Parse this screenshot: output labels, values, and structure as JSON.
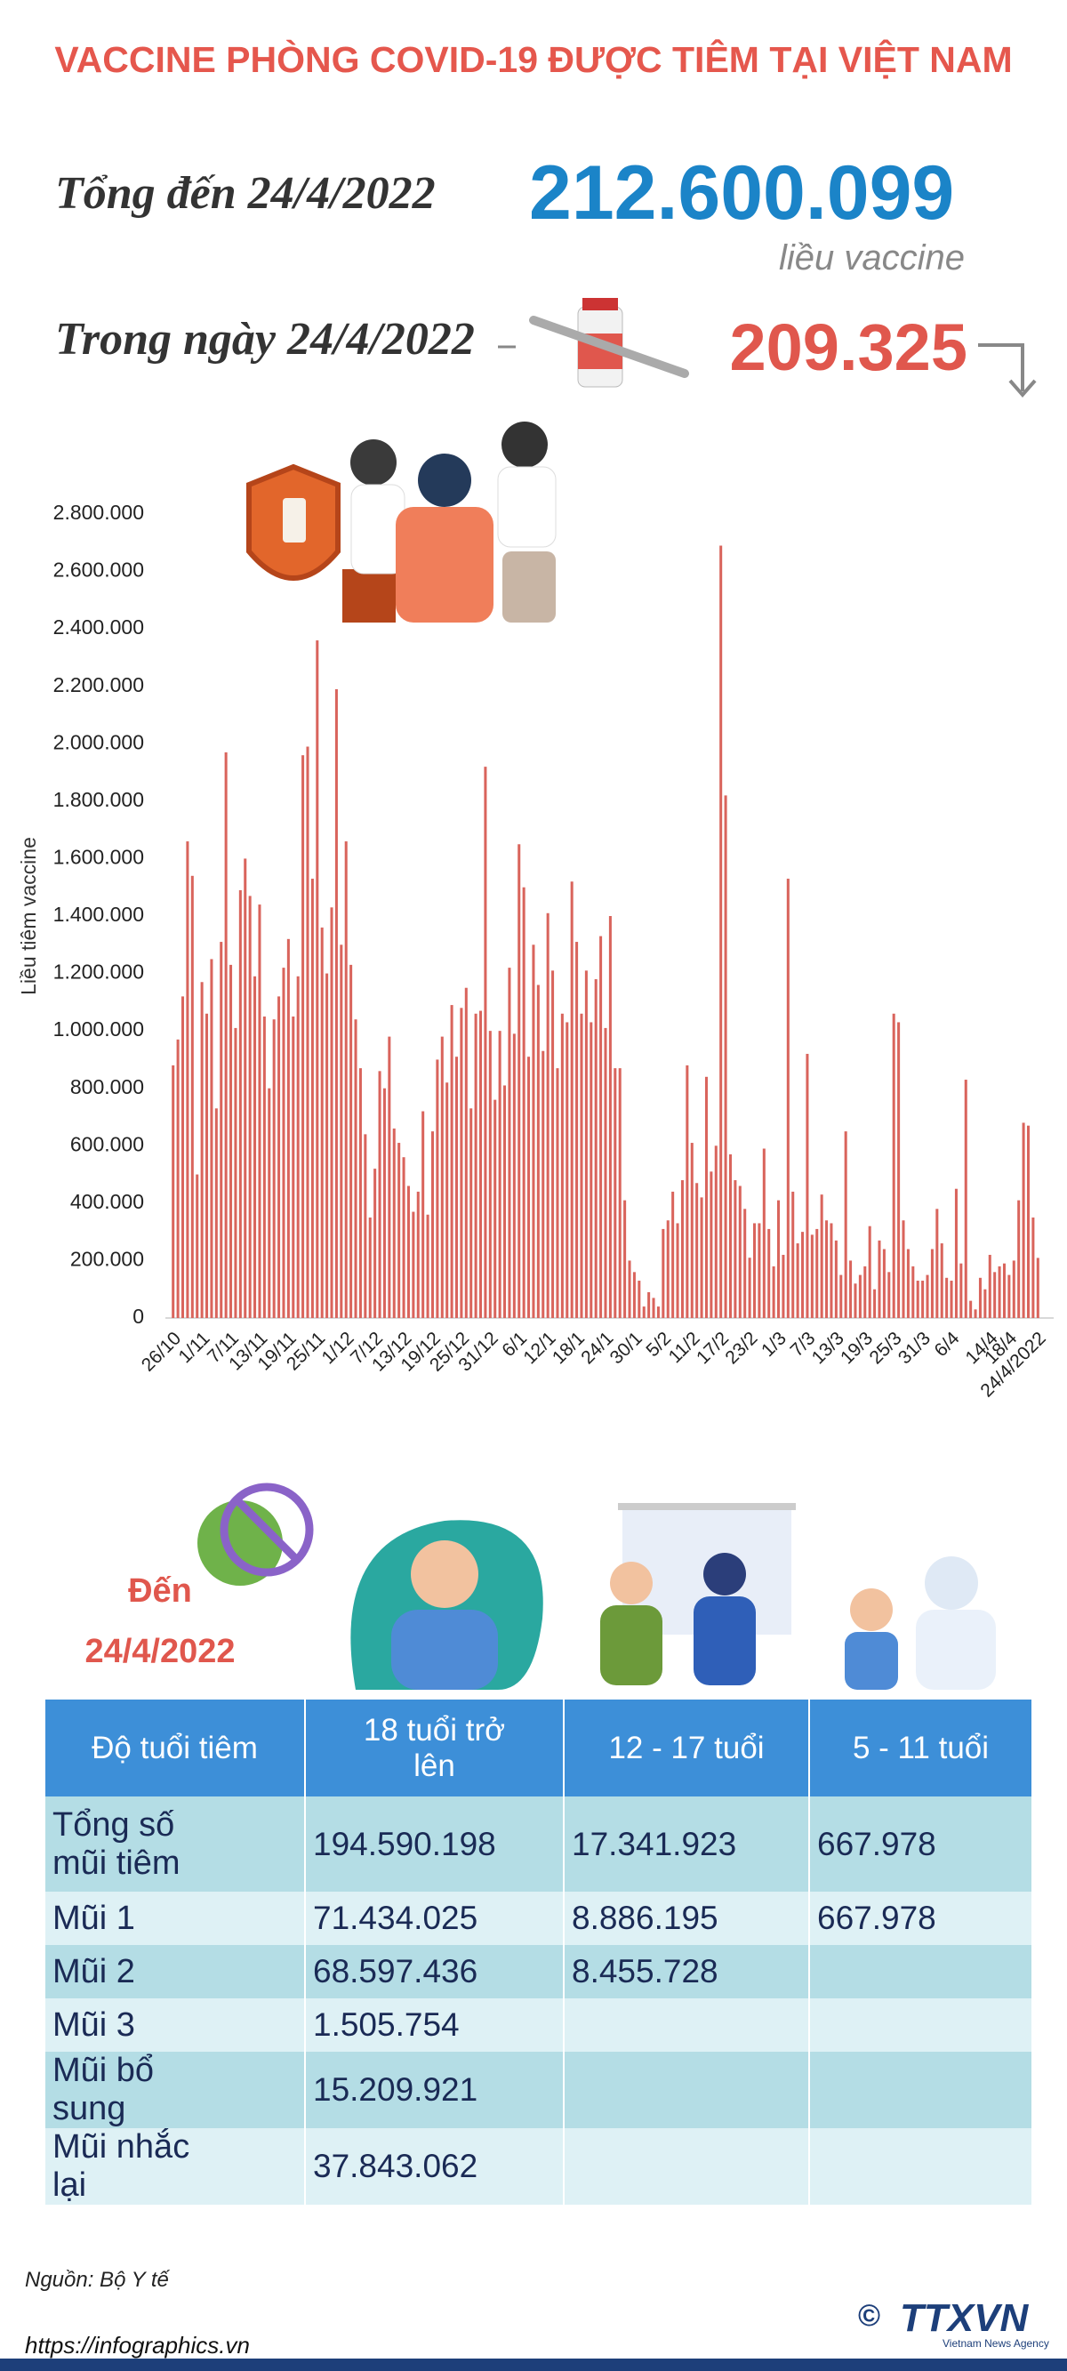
{
  "title": "VACCINE PHÒNG COVID-19 ĐƯỢC TIÊM TẠI VIỆT NAM",
  "summary": {
    "total_label": "Tổng đến 24/4/2022",
    "total": "212.600.099",
    "total_unit": "liều vaccine",
    "day_label": "Trong ngày 24/4/2022",
    "day": "209.325"
  },
  "chart_data": {
    "type": "bar",
    "y_label": "Liều tiêm vaccine",
    "color": "#d9645c",
    "categories": [
      "26/10",
      null,
      null,
      null,
      null,
      null,
      "1/11",
      null,
      null,
      null,
      null,
      null,
      "7/11",
      null,
      null,
      null,
      null,
      null,
      "13/11",
      null,
      null,
      null,
      null,
      null,
      "19/11",
      null,
      null,
      null,
      null,
      null,
      "25/11",
      null,
      null,
      null,
      null,
      null,
      "1/12",
      null,
      null,
      null,
      null,
      null,
      "7/12",
      null,
      null,
      null,
      null,
      null,
      "13/12",
      null,
      null,
      null,
      null,
      null,
      "19/12",
      null,
      null,
      null,
      null,
      null,
      "25/12",
      null,
      null,
      null,
      null,
      null,
      "31/12",
      null,
      null,
      null,
      null,
      null,
      "6/1",
      null,
      null,
      null,
      null,
      null,
      "12/1",
      null,
      null,
      null,
      null,
      null,
      "18/1",
      null,
      null,
      null,
      null,
      null,
      "24/1",
      null,
      null,
      null,
      null,
      null,
      "30/1",
      null,
      null,
      null,
      null,
      null,
      "5/2",
      null,
      null,
      null,
      null,
      null,
      "11/2",
      null,
      null,
      null,
      null,
      null,
      "17/2",
      null,
      null,
      null,
      null,
      null,
      "23/2",
      null,
      null,
      null,
      null,
      null,
      "1/3",
      null,
      null,
      null,
      null,
      null,
      "7/3",
      null,
      null,
      null,
      null,
      null,
      "13/3",
      null,
      null,
      null,
      null,
      null,
      "19/3",
      null,
      null,
      null,
      null,
      null,
      "25/3",
      null,
      null,
      null,
      null,
      null,
      "31/3",
      null,
      null,
      null,
      null,
      null,
      "6/4",
      null,
      null,
      null,
      null,
      null,
      null,
      null,
      "14/4",
      null,
      null,
      null,
      "18/4",
      null,
      null,
      null,
      null,
      null,
      "24/4/2022"
    ],
    "values": [
      880000,
      970000,
      1120000,
      1660000,
      1540000,
      500000,
      1170000,
      1060000,
      1250000,
      730000,
      1310000,
      1970000,
      1230000,
      1010000,
      1490000,
      1600000,
      1470000,
      1190000,
      1440000,
      1050000,
      800000,
      1040000,
      1120000,
      1220000,
      1320000,
      1050000,
      1190000,
      1960000,
      1990000,
      1530000,
      2360000,
      1360000,
      1200000,
      1430000,
      2190000,
      1300000,
      1660000,
      1230000,
      1040000,
      870000,
      640000,
      350000,
      520000,
      860000,
      800000,
      980000,
      660000,
      610000,
      560000,
      460000,
      370000,
      440000,
      720000,
      360000,
      650000,
      900000,
      980000,
      820000,
      1090000,
      910000,
      1080000,
      1150000,
      730000,
      1060000,
      1070000,
      1920000,
      1000000,
      760000,
      1000000,
      810000,
      1220000,
      990000,
      1650000,
      1500000,
      910000,
      1300000,
      1160000,
      930000,
      1410000,
      1210000,
      870000,
      1060000,
      1030000,
      1520000,
      1310000,
      1060000,
      1210000,
      1030000,
      1180000,
      1330000,
      1010000,
      1400000,
      870000,
      870000,
      410000,
      200000,
      160000,
      130000,
      40000,
      90000,
      70000,
      40000,
      310000,
      340000,
      440000,
      330000,
      480000,
      880000,
      610000,
      470000,
      420000,
      840000,
      510000,
      600000,
      2690000,
      1820000,
      570000,
      480000,
      460000,
      380000,
      210000,
      330000,
      330000,
      590000,
      310000,
      180000,
      410000,
      220000,
      1530000,
      440000,
      260000,
      300000,
      920000,
      290000,
      310000,
      430000,
      340000,
      330000,
      270000,
      150000,
      650000,
      200000,
      120000,
      150000,
      180000,
      320000,
      100000,
      270000,
      240000,
      160000,
      1060000,
      1030000,
      340000,
      240000,
      180000,
      130000,
      130000,
      150000,
      240000,
      380000,
      260000,
      140000,
      130000,
      450000,
      190000,
      830000,
      60000,
      30000,
      140000,
      100000,
      220000,
      160000,
      180000,
      190000,
      150000,
      200000,
      410000,
      680000,
      670000,
      350000,
      209325
    ],
    "ylim": [
      0,
      2800000
    ],
    "yticks": [
      0,
      {
        "value": 200000,
        "label": "200.000"
      },
      {
        "value": 400000,
        "label": "400.000"
      },
      {
        "value": 600000,
        "label": "600.000"
      },
      {
        "value": 800000,
        "label": "800.000"
      },
      {
        "value": 1000000,
        "label": "1.000.000"
      },
      {
        "value": 1200000,
        "label": "1.200.000"
      },
      {
        "value": 1400000,
        "label": "1.400.000"
      },
      {
        "value": 1600000,
        "label": "1.600.000"
      },
      {
        "value": 1800000,
        "label": "1.800.000"
      },
      {
        "value": 2000000,
        "label": "2.000.000"
      },
      {
        "value": 2200000,
        "label": "2.200.000"
      },
      {
        "value": 2400000,
        "label": "2.400.000"
      },
      {
        "value": 2600000,
        "label": "2.600.000"
      },
      {
        "value": 2800000,
        "label": "2.800.000"
      }
    ],
    "grid": false
  },
  "table": {
    "as_of_label": "Đến",
    "as_of_date": "24/4/2022",
    "header": [
      "Độ tuổi tiêm",
      "18 tuổi trở lên",
      "12 - 17 tuổi",
      "5 - 11 tuổi"
    ],
    "rows": [
      [
        "Tổng số mũi tiêm",
        "194.590.198",
        "17.341.923",
        "667.978"
      ],
      [
        "Mũi 1",
        "71.434.025",
        "8.886.195",
        "667.978"
      ],
      [
        "Mũi 2",
        "68.597.436",
        "8.455.728",
        null
      ],
      [
        "Mũi 3",
        "1.505.754",
        null,
        null
      ],
      [
        "Mũi bổ sung",
        "15.209.921",
        null,
        null
      ],
      [
        "Mũi nhắc lại",
        "37.843.062",
        null,
        null
      ]
    ]
  },
  "source": "Nguồn: Bộ Y tế",
  "url": "https://infographics.vn",
  "logo_mark": "©",
  "logo": "TTXVN",
  "logo_sub": "Vietnam News Agency"
}
